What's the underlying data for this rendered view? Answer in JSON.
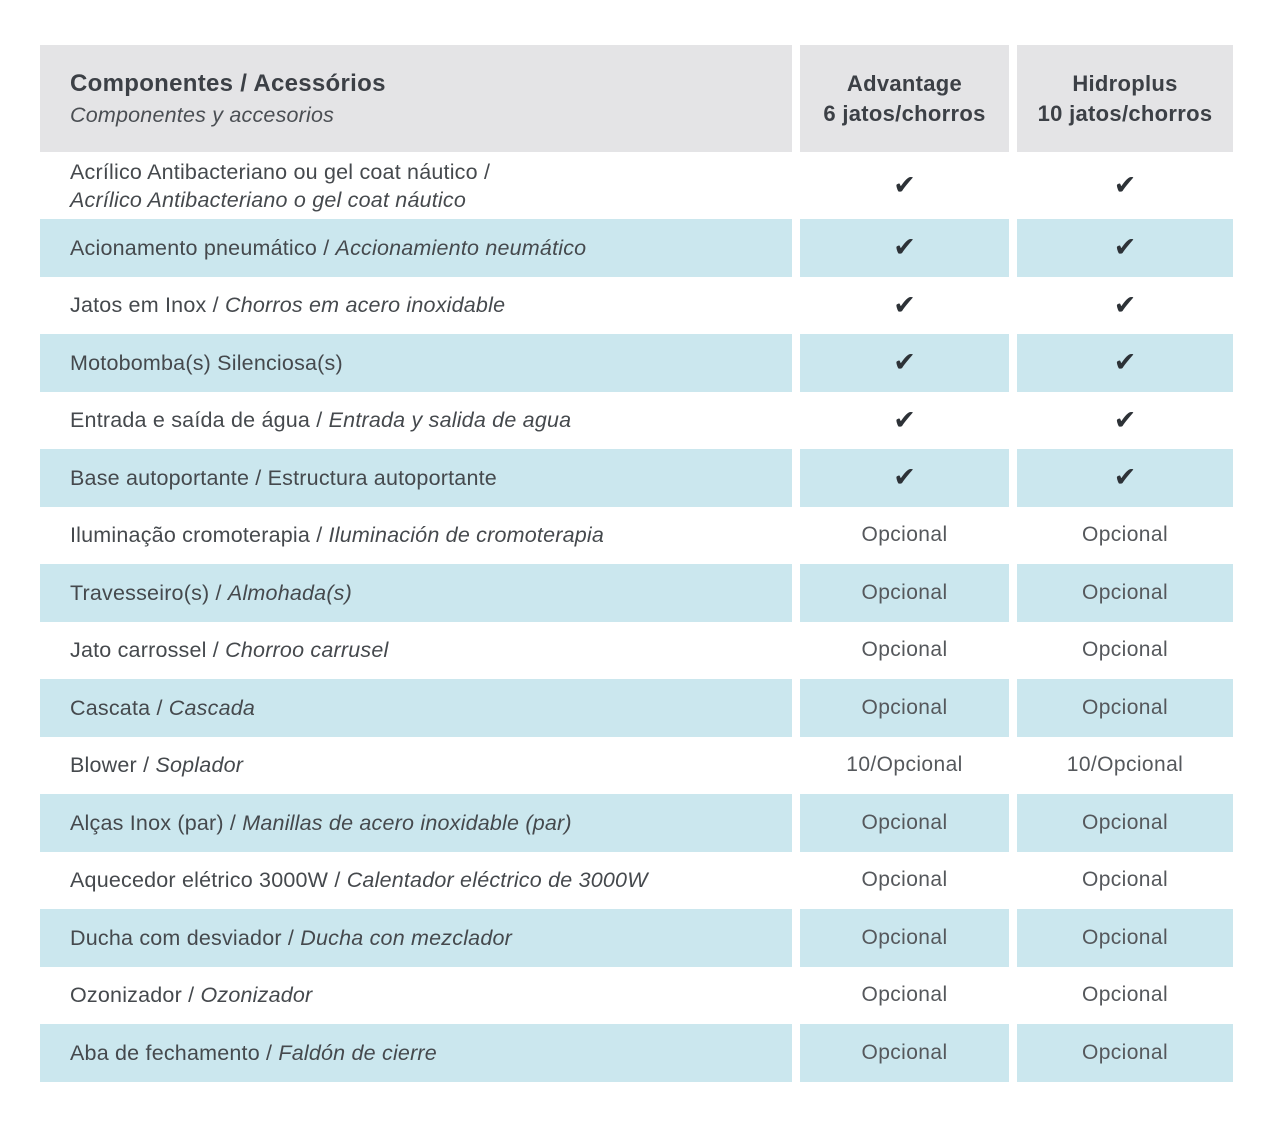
{
  "colors": {
    "header_bg": "#e4e4e6",
    "shaded_row_bg": "#cbe7ee",
    "label_text": "#45494d",
    "header_text": "#3c4046",
    "value_text": "#55585c",
    "check_color": "#2d3237"
  },
  "table": {
    "header": {
      "components_title": "Componentes / Acessórios",
      "components_subtitle": "Componentes y accesorios",
      "advantage_line1": "Advantage",
      "advantage_line2": "6 jatos/chorros",
      "hidroplus_line1": "Hidroplus",
      "hidroplus_line2": "10 jatos/chorros"
    },
    "check_symbol": "✔",
    "rows": [
      {
        "label_pt": "Acrílico Antibacteriano ou gel coat náutico /",
        "label_es": "Acrílico Antibacteriano o gel coat náutico",
        "es_italic": true,
        "two_line": true,
        "shaded": false,
        "advantage": "✔",
        "hidroplus": "✔"
      },
      {
        "label_pt": "Acionamento pneumático / ",
        "label_es": "Accionamiento neumático",
        "es_italic": true,
        "two_line": false,
        "shaded": true,
        "advantage": "✔",
        "hidroplus": "✔"
      },
      {
        "label_pt": "Jatos em Inox / ",
        "label_es": "Chorros em acero inoxidable",
        "es_italic": true,
        "two_line": false,
        "shaded": false,
        "advantage": "✔",
        "hidroplus": "✔"
      },
      {
        "label_pt": "Motobomba(s) Silenciosa(s)",
        "label_es": "",
        "es_italic": false,
        "two_line": false,
        "shaded": true,
        "advantage": "✔",
        "hidroplus": "✔"
      },
      {
        "label_pt": "Entrada e saída de água / ",
        "label_es": "Entrada y salida de agua",
        "es_italic": true,
        "two_line": false,
        "shaded": false,
        "advantage": "✔",
        "hidroplus": "✔"
      },
      {
        "label_pt": "Base autoportante / ",
        "label_es": "Estructura autoportante",
        "es_italic": false,
        "two_line": false,
        "shaded": true,
        "advantage": "✔",
        "hidroplus": "✔"
      },
      {
        "label_pt": "Iluminação cromoterapia / ",
        "label_es": "Iluminación de cromoterapia",
        "es_italic": true,
        "two_line": false,
        "shaded": false,
        "advantage": "Opcional",
        "hidroplus": "Opcional"
      },
      {
        "label_pt": "Travesseiro(s) / ",
        "label_es": "Almohada(s)",
        "es_italic": true,
        "two_line": false,
        "shaded": true,
        "advantage": "Opcional",
        "hidroplus": "Opcional"
      },
      {
        "label_pt": "Jato carrossel / ",
        "label_es": "Chorroo carrusel",
        "es_italic": true,
        "two_line": false,
        "shaded": false,
        "advantage": "Opcional",
        "hidroplus": "Opcional"
      },
      {
        "label_pt": "Cascata / ",
        "label_es": "Cascada",
        "es_italic": true,
        "two_line": false,
        "shaded": true,
        "advantage": "Opcional",
        "hidroplus": "Opcional"
      },
      {
        "label_pt": "Blower / ",
        "label_es": "Soplador",
        "es_italic": true,
        "two_line": false,
        "shaded": false,
        "advantage": "10/Opcional",
        "hidroplus": "10/Opcional"
      },
      {
        "label_pt": "Alças Inox (par) / ",
        "label_es": "Manillas de acero inoxidable (par)",
        "es_italic": true,
        "two_line": false,
        "shaded": true,
        "advantage": "Opcional",
        "hidroplus": "Opcional"
      },
      {
        "label_pt": "Aquecedor elétrico 3000W / ",
        "label_es": "Calentador eléctrico de 3000W",
        "es_italic": true,
        "two_line": false,
        "shaded": false,
        "advantage": "Opcional",
        "hidroplus": "Opcional"
      },
      {
        "label_pt": "Ducha com desviador / ",
        "label_es": "Ducha con mezclador",
        "es_italic": true,
        "two_line": false,
        "shaded": true,
        "advantage": "Opcional",
        "hidroplus": "Opcional"
      },
      {
        "label_pt": "Ozonizador / ",
        "label_es": "Ozonizador",
        "es_italic": true,
        "two_line": false,
        "shaded": false,
        "advantage": "Opcional",
        "hidroplus": "Opcional"
      },
      {
        "label_pt": "Aba de fechamento / ",
        "label_es": "Faldón de cierre",
        "es_italic": true,
        "two_line": false,
        "shaded": true,
        "advantage": "Opcional",
        "hidroplus": "Opcional"
      }
    ]
  }
}
